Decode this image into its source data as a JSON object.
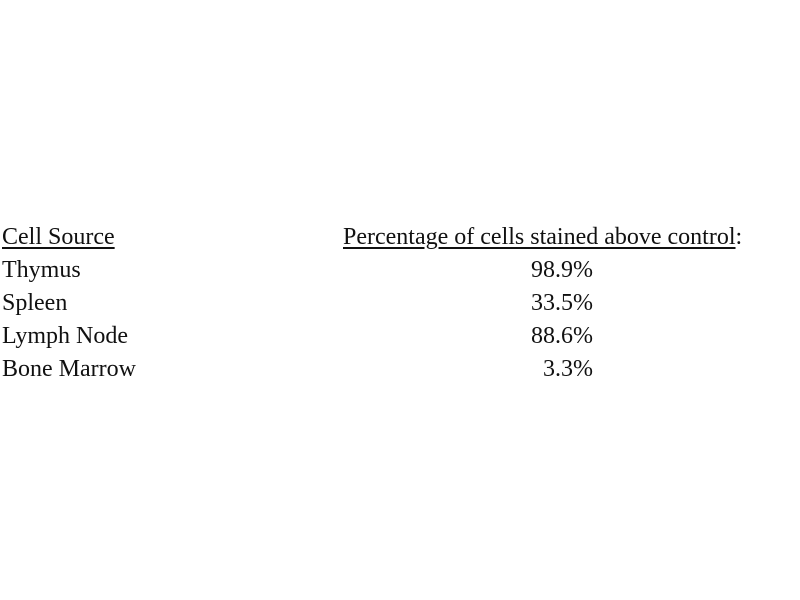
{
  "document": {
    "background_color": "#ffffff",
    "text_color": "#111111"
  },
  "table": {
    "headers": {
      "col1": "Cell Source",
      "col2": "Percentage of cells stained above control",
      "col2_suffix": ":"
    },
    "rows": [
      {
        "cell_source": "Thymus",
        "percentage": "98.9%"
      },
      {
        "cell_source": "Spleen",
        "percentage": "33.5%"
      },
      {
        "cell_source": "Lymph Node",
        "percentage": "88.6%"
      },
      {
        "cell_source": "Bone Marrow",
        "percentage": "3.3%"
      }
    ]
  }
}
